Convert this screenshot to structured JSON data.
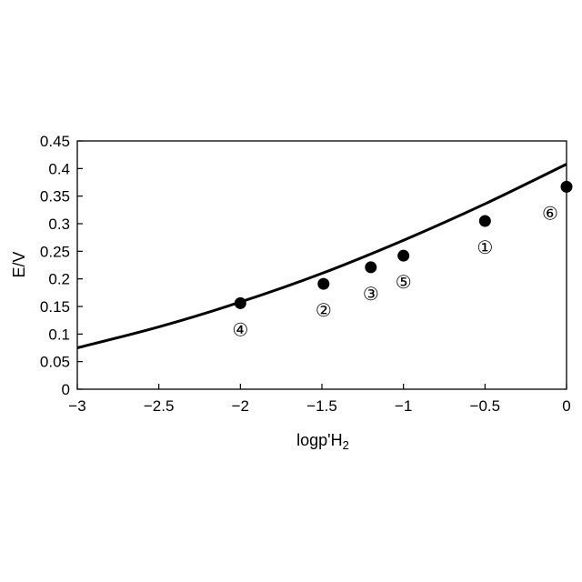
{
  "chart_data": {
    "type": "scatter",
    "xlabel": "logp'H",
    "xlabel_sub": "2",
    "ylabel": "E/V",
    "xlim": [
      -3,
      0
    ],
    "ylim": [
      0,
      0.45
    ],
    "xticks": [
      -3,
      -2.5,
      -2,
      -1.5,
      -1,
      -0.5,
      0
    ],
    "xtick_labels": [
      "−3",
      "−2.5",
      "−2",
      "−1.5",
      "−1",
      "−0.5",
      "0"
    ],
    "yticks": [
      0,
      0.05,
      0.1,
      0.15,
      0.2,
      0.25,
      0.3,
      0.35,
      0.4,
      0.45
    ],
    "ytick_labels": [
      "0",
      "0.05",
      "0.1",
      "0.15",
      "0.2",
      "0.25",
      "0.3",
      "0.35",
      "0.4",
      "0.45"
    ],
    "grid": false,
    "line": {
      "x": [
        -3,
        -2.5,
        -2,
        -1.5,
        -1,
        -0.5,
        0
      ],
      "y": [
        0.075,
        0.113,
        0.158,
        0.21,
        0.27,
        0.336,
        0.408
      ]
    },
    "points": [
      {
        "x": -0.5,
        "y": 0.305,
        "label": "①"
      },
      {
        "x": -1.49,
        "y": 0.191,
        "label": "②"
      },
      {
        "x": -1.2,
        "y": 0.221,
        "label": "③"
      },
      {
        "x": -2.0,
        "y": 0.156,
        "label": "④"
      },
      {
        "x": -1.0,
        "y": 0.242,
        "label": "⑤"
      },
      {
        "x": 0.0,
        "y": 0.367,
        "label": "⑥"
      }
    ]
  }
}
